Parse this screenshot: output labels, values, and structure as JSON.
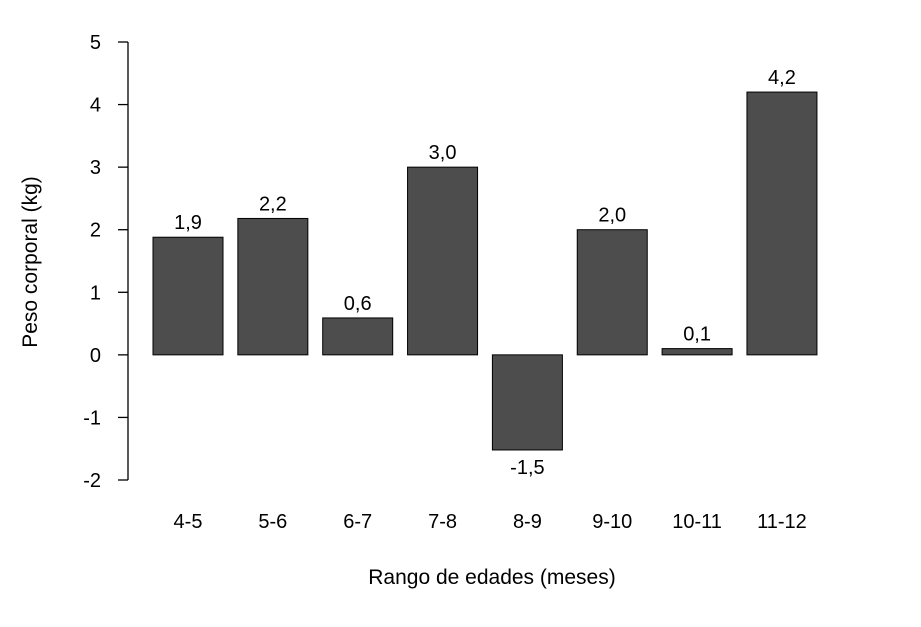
{
  "chart_data": {
    "type": "bar",
    "categories": [
      "4-5",
      "5-6",
      "6-7",
      "7-8",
      "8-9",
      "9-10",
      "10-11",
      "11-12"
    ],
    "values": [
      1.88,
      2.18,
      0.59,
      3.0,
      -1.52,
      2.0,
      0.1,
      4.2
    ],
    "data_labels": [
      "1,9",
      "2,2",
      "0,6",
      "3,0",
      "-1,5",
      "2,0",
      "0,1",
      "4,2"
    ],
    "xlabel": "Rango de edades (meses)",
    "ylabel": "Peso corporal (kg)",
    "ylim": [
      -2,
      5
    ],
    "yticks": [
      -2,
      -1,
      0,
      1,
      2,
      3,
      4,
      5
    ],
    "ytick_labels": [
      "-2",
      "-1",
      "0",
      "1",
      "2",
      "3",
      "4",
      "5"
    ],
    "bar_color": "#4d4d4d",
    "grid": false
  }
}
